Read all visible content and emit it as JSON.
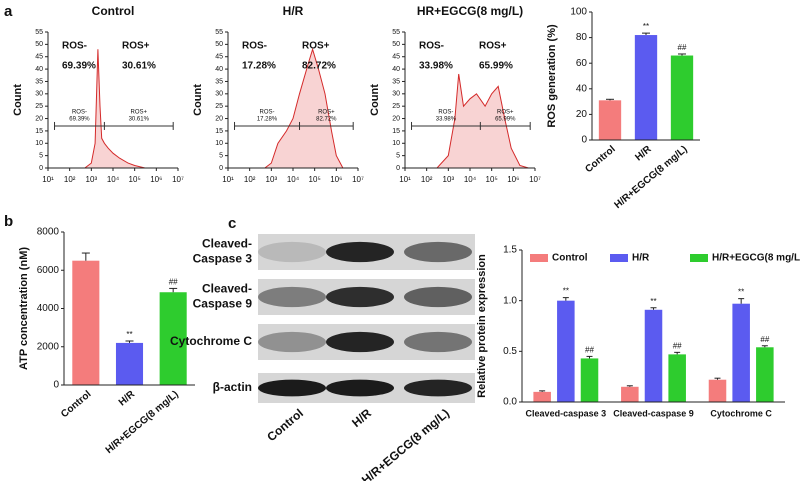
{
  "chart_data": [
    {
      "type": "flow",
      "panel": "a",
      "title": "Control",
      "y_label": "Count",
      "log_x": true,
      "x": [
        10,
        100,
        500,
        1000,
        1500,
        2000,
        2500,
        3000,
        4000,
        6000,
        10000,
        20000,
        50000,
        100000,
        300000,
        1000000
      ],
      "values": [
        0,
        0,
        0,
        2,
        10,
        48,
        25,
        12,
        10,
        8,
        6,
        4,
        2,
        1,
        0,
        0
      ],
      "xlim": [
        10,
        10000000
      ],
      "ylim": [
        0,
        55
      ],
      "xticks": [
        {
          "value": 10,
          "label": "10¹"
        },
        {
          "value": 100,
          "label": "10²"
        },
        {
          "value": 1000,
          "label": "10³"
        },
        {
          "value": 10000,
          "label": "10⁴"
        },
        {
          "value": 100000,
          "label": "10⁵"
        },
        {
          "value": 1000000,
          "label": "10⁶"
        },
        {
          "value": 10000000,
          "label": "10⁷"
        }
      ],
      "yticks": [
        0,
        5,
        10,
        15,
        20,
        25,
        30,
        35,
        40,
        45,
        50,
        55
      ],
      "color": "#d42a2a",
      "fill": "#f8d3d3",
      "gate": {
        "x": [
          20,
          4000,
          6000000
        ],
        "y": 17
      },
      "annotations": {
        "neg": "ROS-",
        "neg_pct": "69.39%",
        "pos": "ROS+",
        "pos_pct": "30.61%"
      }
    },
    {
      "type": "flow",
      "title": "H/R",
      "y_label": "Count",
      "log_x": true,
      "x": [
        10,
        500,
        1000,
        2000,
        5000,
        10000,
        20000,
        50000,
        80000,
        150000,
        300000,
        600000,
        1000000,
        2000000
      ],
      "values": [
        0,
        0,
        2,
        10,
        15,
        20,
        30,
        42,
        48,
        40,
        30,
        15,
        5,
        0
      ],
      "xlim": [
        10,
        10000000
      ],
      "ylim": [
        0,
        55
      ],
      "xticks": [
        {
          "value": 10,
          "label": "10¹"
        },
        {
          "value": 100,
          "label": "10²"
        },
        {
          "value": 1000,
          "label": "10³"
        },
        {
          "value": 10000,
          "label": "10⁴"
        },
        {
          "value": 100000,
          "label": "10⁵"
        },
        {
          "value": 1000000,
          "label": "10⁶"
        },
        {
          "value": 10000000,
          "label": "10⁷"
        }
      ],
      "yticks": [
        0,
        5,
        10,
        15,
        20,
        25,
        30,
        35,
        40,
        45,
        50,
        55
      ],
      "color": "#d42a2a",
      "fill": "#f8d3d3",
      "gate": {
        "x": [
          20,
          20000,
          6000000
        ],
        "y": 17
      },
      "annotations": {
        "neg": "ROS-",
        "neg_pct": "17.28%",
        "pos": "ROS+",
        "pos_pct": "82.72%"
      }
    },
    {
      "type": "flow",
      "title": "HR+EGCG(8 mg/L)",
      "y_label": "Count",
      "log_x": true,
      "x": [
        10,
        300,
        1000,
        2000,
        3000,
        5000,
        10000,
        20000,
        50000,
        100000,
        200000,
        400000,
        800000,
        2000000,
        5000000
      ],
      "values": [
        0,
        0,
        5,
        20,
        38,
        25,
        28,
        30,
        25,
        30,
        33,
        20,
        8,
        1,
        0
      ],
      "xlim": [
        10,
        10000000
      ],
      "ylim": [
        0,
        55
      ],
      "xticks": [
        {
          "value": 10,
          "label": "10¹"
        },
        {
          "value": 100,
          "label": "10²"
        },
        {
          "value": 1000,
          "label": "10³"
        },
        {
          "value": 10000,
          "label": "10⁴"
        },
        {
          "value": 100000,
          "label": "10⁵"
        },
        {
          "value": 1000000,
          "label": "10⁶"
        },
        {
          "value": 10000000,
          "label": "10⁷"
        }
      ],
      "yticks": [
        0,
        5,
        10,
        15,
        20,
        25,
        30,
        35,
        40,
        45,
        50,
        55
      ],
      "color": "#d42a2a",
      "fill": "#f8d3d3",
      "gate": {
        "x": [
          20,
          30000,
          6000000
        ],
        "y": 17
      },
      "annotations": {
        "neg": "ROS-",
        "neg_pct": "33.98%",
        "pos": "ROS+",
        "pos_pct": "65.99%"
      }
    },
    {
      "type": "bar",
      "y_label": "ROS generation (%)",
      "categories": [
        "Control",
        "H/R",
        "H/R+EGCG(8 mg/L)"
      ],
      "values": [
        31,
        82,
        66
      ],
      "errors": [
        0.8,
        1.5,
        1.2
      ],
      "marks": [
        null,
        "**",
        "##"
      ],
      "colors": [
        "#f47c7c",
        "#5b5bf0",
        "#2ecc2e"
      ],
      "ylim": [
        0,
        100
      ],
      "yticks": [
        0,
        20,
        40,
        60,
        80,
        100
      ]
    },
    {
      "type": "bar",
      "panel": "b",
      "y_label": "ATP concentration (nM)",
      "categories": [
        "Control",
        "H/R",
        "H/R+EGCG(8 mg/L)"
      ],
      "values": [
        6500,
        2200,
        4850
      ],
      "errors": [
        400,
        100,
        200
      ],
      "marks": [
        null,
        "**",
        "##"
      ],
      "colors": [
        "#f47c7c",
        "#5b5bf0",
        "#2ecc2e"
      ],
      "ylim": [
        0,
        8000
      ],
      "yticks": [
        0,
        2000,
        4000,
        6000,
        8000
      ]
    },
    {
      "type": "blot",
      "panel": "c",
      "rows": [
        [
          "Cleaved-",
          "Caspase 3"
        ],
        [
          "Cleaved-",
          "Caspase 9"
        ],
        [
          "Cytochrome C"
        ],
        [
          "β-actin"
        ]
      ],
      "lanes": [
        "Control",
        "H/R",
        "H/R+EGCG(8 mg/L)"
      ]
    },
    {
      "type": "grouped_bar",
      "y_label": "Relative protein expression",
      "categories": [
        "Cleaved-caspase 3",
        "Cleaved-caspase 9",
        "Cytochrome C"
      ],
      "series": [
        {
          "name": "Control",
          "color": "#f47c7c",
          "values": [
            0.1,
            0.15,
            0.22
          ],
          "errors": [
            0.01,
            0.01,
            0.015
          ],
          "marks": [
            null,
            null,
            null
          ]
        },
        {
          "name": "H/R",
          "color": "#5b5bf0",
          "values": [
            1.0,
            0.91,
            0.97
          ],
          "errors": [
            0.03,
            0.02,
            0.05
          ],
          "marks": [
            "**",
            "**",
            "**"
          ]
        },
        {
          "name": "H/R+EGCG(8 mg/L)",
          "color": "#2ecc2e",
          "values": [
            0.43,
            0.47,
            0.54
          ],
          "errors": [
            0.02,
            0.02,
            0.015
          ],
          "marks": [
            "##",
            "##",
            "##"
          ]
        }
      ],
      "ylim": [
        0,
        1.5
      ],
      "yticks": [
        {
          "value": 0,
          "label": "0.0"
        },
        {
          "value": 0.5,
          "label": "0.5"
        },
        {
          "value": 1,
          "label": "1.0"
        },
        {
          "value": 1.5,
          "label": "1.5"
        }
      ],
      "legend": "top"
    }
  ]
}
